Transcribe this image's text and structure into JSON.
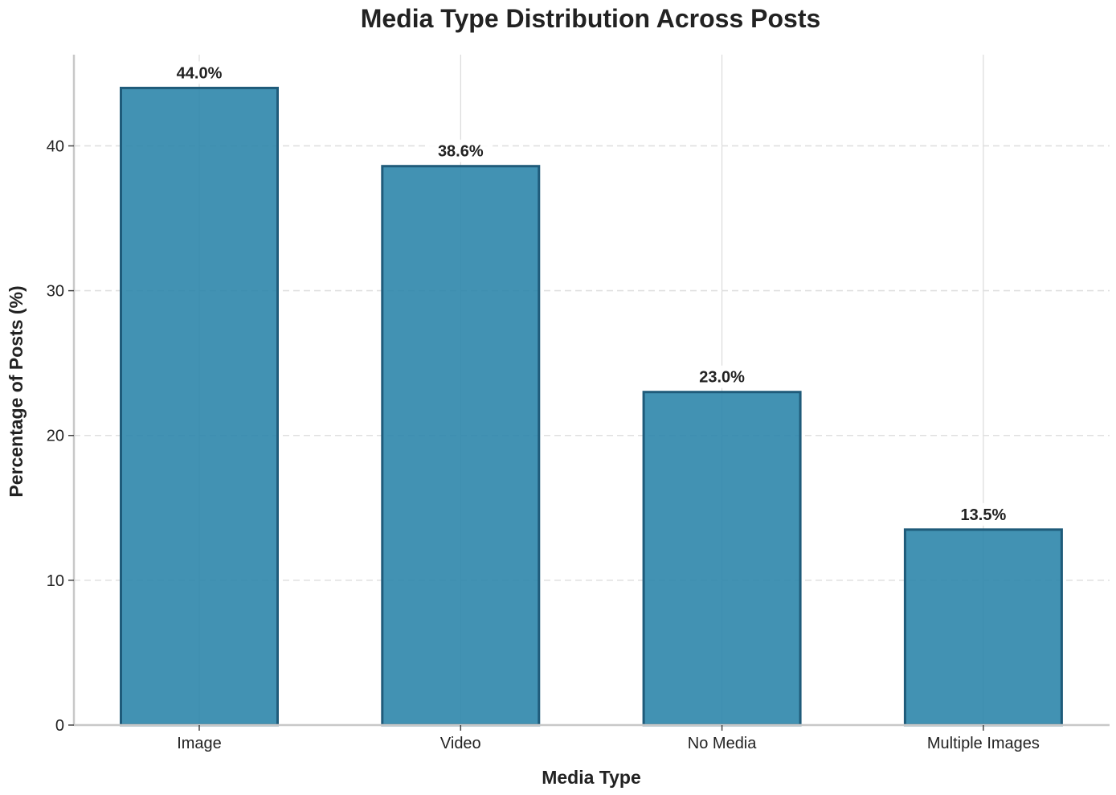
{
  "chart_data": {
    "type": "bar",
    "title": "Media Type Distribution Across Posts",
    "xlabel": "Media Type",
    "ylabel": "Percentage of Posts (%)",
    "categories": [
      "Image",
      "Video",
      "No Media",
      "Multiple Images"
    ],
    "values": [
      44.0,
      38.6,
      23.0,
      13.5
    ],
    "data_labels": [
      "44.0%",
      "38.6%",
      "23.0%",
      "13.5%"
    ],
    "y_ticks": [
      0,
      10,
      20,
      30,
      40
    ],
    "ylim": [
      0,
      46.3
    ],
    "grid": "y-dashed",
    "legend": "none",
    "colors": {
      "bar_fill": "#2e86ab",
      "bar_edge": "#1f5b7a",
      "grid": "#e0e0e0",
      "axis": "#c8c8c8",
      "text": "#222222"
    }
  }
}
